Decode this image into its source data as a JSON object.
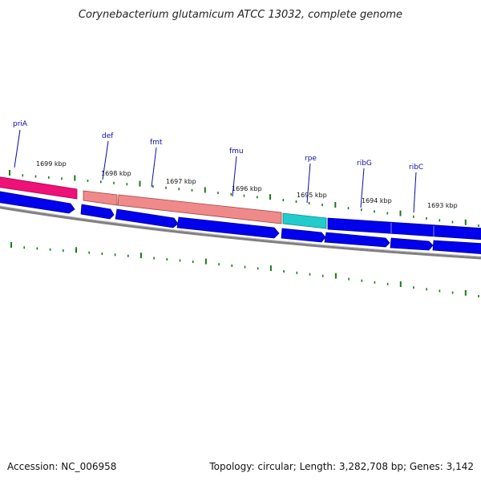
{
  "title": "Corynebacterium glutamicum ATCC 13032, complete genome",
  "footer": {
    "accession": "Accession: NC_006958",
    "topology": "Topology: circular; Length: 3,282,708 bp; Genes: 3,142"
  },
  "position_labels": [
    "1699 kbp",
    "1698 kbp",
    "1697 kbp",
    "1696 kbp",
    "1695 kbp",
    "1694 kbp",
    "1693 kbp"
  ],
  "gene_labels": [
    "priA",
    "def",
    "fmt",
    "fmu",
    "rpe",
    "ribG",
    "ribC"
  ],
  "colors": {
    "gene_label": "#0a0aa8",
    "tick": "#1a7a1a",
    "backbone": "#808080",
    "cds_arrow": "#0000ee",
    "priA_feature": "#ee1177",
    "salmon_feature": "#f08a8a",
    "rpe_feature": "#22cccc"
  }
}
